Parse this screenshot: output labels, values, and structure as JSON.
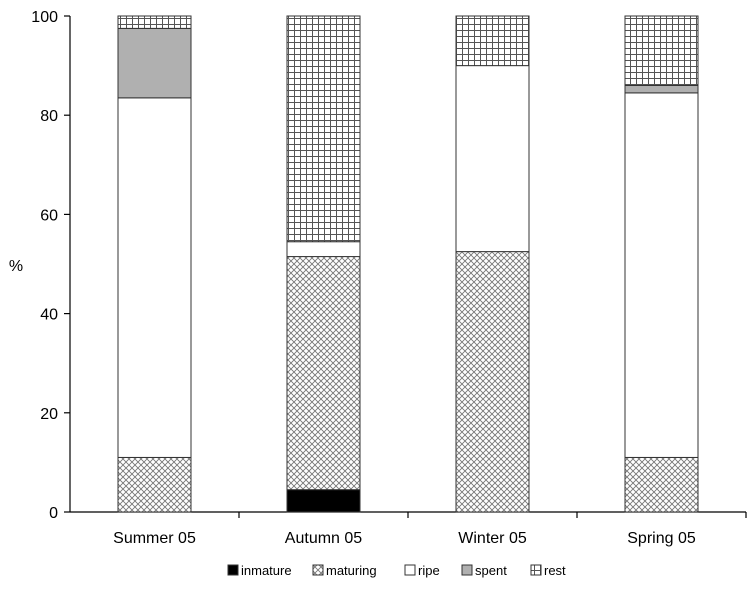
{
  "chart_data": {
    "type": "bar",
    "stacked": true,
    "title": "",
    "xlabel": "",
    "ylabel": "%",
    "ylim": [
      0,
      100
    ],
    "yticks": [
      0,
      20,
      40,
      60,
      80,
      100
    ],
    "grid": false,
    "legend_position": "bottom",
    "categories": [
      "Summer 05",
      "Autumn 05",
      "Winter 05",
      "Spring 05"
    ],
    "series": [
      {
        "name": "inmature",
        "pattern": "solid-black",
        "color": "#000000",
        "values": [
          0,
          4.5,
          0,
          0
        ]
      },
      {
        "name": "maturing",
        "pattern": "diagonal-crosshatch",
        "color": "#888888",
        "values": [
          11,
          47,
          52.5,
          11
        ]
      },
      {
        "name": "ripe",
        "pattern": "white",
        "color": "#ffffff",
        "values": [
          72.5,
          3,
          37.5,
          73.5
        ]
      },
      {
        "name": "spent",
        "pattern": "solid-grey",
        "color": "#aaaaaa",
        "values": [
          14,
          0,
          0,
          1.5
        ]
      },
      {
        "name": "rest",
        "pattern": "square-grid",
        "color": "#666666",
        "values": [
          2.5,
          45.5,
          10,
          14
        ]
      }
    ]
  }
}
